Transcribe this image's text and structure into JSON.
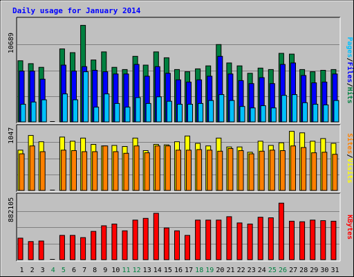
{
  "title": "Daily usage for January 2014",
  "colors": {
    "background": "#c0c0c0",
    "title": "#0000ff",
    "hits": "#008040",
    "files": "#0000ff",
    "pages": "#00c0ff",
    "visits": "#ffff00",
    "sites": "#ff8000",
    "kbytes": "#ff0000",
    "weekend_label": "#008040"
  },
  "chart_data": [
    {
      "type": "bar",
      "name": "hits-files-pages",
      "ytick_label": "10689",
      "ylabel_parts": [
        "Pages",
        "/",
        "Files",
        "/",
        "Hits"
      ],
      "categories": [
        "1",
        "2",
        "3",
        "4",
        "5",
        "6",
        "7",
        "8",
        "9",
        "10",
        "11",
        "12",
        "13",
        "14",
        "15",
        "16",
        "17",
        "18",
        "19",
        "20",
        "21",
        "22",
        "23",
        "24",
        "25",
        "26",
        "27",
        "28",
        "29",
        "30",
        "31"
      ],
      "weekend_days": [
        "4",
        "5",
        "11",
        "12",
        "18",
        "19",
        "25",
        "26"
      ],
      "ylim": [
        0,
        14000
      ],
      "ytick_value": 10689,
      "series": [
        {
          "name": "Hits",
          "values": [
            8300,
            7900,
            7400,
            0,
            9900,
            9400,
            13100,
            8400,
            9500,
            7400,
            7100,
            8900,
            7700,
            9500,
            8700,
            7100,
            6800,
            7200,
            7600,
            10500,
            8000,
            7600,
            6600,
            7300,
            7100,
            9300,
            9200,
            7100,
            6800,
            7000,
            7100
          ]
        },
        {
          "name": "Files",
          "values": [
            6900,
            6900,
            5800,
            0,
            7700,
            6900,
            7500,
            7000,
            6800,
            6500,
            6500,
            7800,
            6200,
            7500,
            6600,
            5700,
            5400,
            5700,
            6200,
            8900,
            6500,
            5600,
            5200,
            6000,
            5200,
            7800,
            8000,
            6300,
            5300,
            5400,
            6500
          ]
        },
        {
          "name": "Pages",
          "values": [
            2400,
            2700,
            3000,
            0,
            3800,
            3000,
            6800,
            2000,
            3800,
            2500,
            2000,
            3300,
            2500,
            3400,
            2800,
            2400,
            2400,
            2500,
            2900,
            3700,
            2900,
            2100,
            1900,
            2200,
            1900,
            3600,
            3700,
            2600,
            2400,
            2300,
            2900
          ]
        }
      ]
    },
    {
      "type": "bar",
      "name": "visits-sites",
      "ytick_label": "1047",
      "ylabel_parts": [
        "Sites",
        "/",
        "Visits"
      ],
      "categories": [
        "1",
        "2",
        "3",
        "4",
        "5",
        "6",
        "7",
        "8",
        "9",
        "10",
        "11",
        "12",
        "13",
        "14",
        "15",
        "16",
        "17",
        "18",
        "19",
        "20",
        "21",
        "22",
        "23",
        "24",
        "25",
        "26",
        "27",
        "28",
        "29",
        "30",
        "31"
      ],
      "ylim": [
        0,
        1230
      ],
      "ytick_value": 1047,
      "series": [
        {
          "name": "Visits",
          "values": [
            770,
            1050,
            930,
            0,
            1020,
            940,
            1000,
            880,
            850,
            860,
            840,
            1000,
            760,
            880,
            870,
            930,
            1040,
            900,
            850,
            1000,
            830,
            830,
            730,
            940,
            860,
            910,
            1130,
            1100,
            940,
            990,
            900
          ]
        },
        {
          "name": "Sites",
          "values": [
            700,
            850,
            740,
            0,
            770,
            760,
            740,
            740,
            850,
            740,
            710,
            850,
            720,
            850,
            850,
            770,
            770,
            780,
            770,
            750,
            800,
            760,
            700,
            750,
            770,
            760,
            850,
            820,
            720,
            730,
            690
          ]
        }
      ]
    },
    {
      "type": "bar",
      "name": "kbytes",
      "ytick_label": "882105",
      "ylabel_parts": [
        "KBytes"
      ],
      "categories": [
        "1",
        "2",
        "3",
        "4",
        "5",
        "6",
        "7",
        "8",
        "9",
        "10",
        "11",
        "12",
        "13",
        "14",
        "15",
        "16",
        "17",
        "18",
        "19",
        "20",
        "21",
        "22",
        "23",
        "24",
        "25",
        "26",
        "27",
        "28",
        "29",
        "30",
        "31"
      ],
      "ylim": [
        0,
        1150000
      ],
      "ytick_value": 882105,
      "series": [
        {
          "name": "KBytes",
          "values": [
            380000,
            320000,
            330000,
            0,
            430000,
            430000,
            390000,
            500000,
            600000,
            630000,
            510000,
            700000,
            730000,
            820000,
            560000,
            510000,
            430000,
            700000,
            700000,
            700000,
            760000,
            650000,
            630000,
            750000,
            740000,
            1000000,
            680000,
            670000,
            700000,
            690000,
            680000
          ]
        }
      ]
    }
  ]
}
